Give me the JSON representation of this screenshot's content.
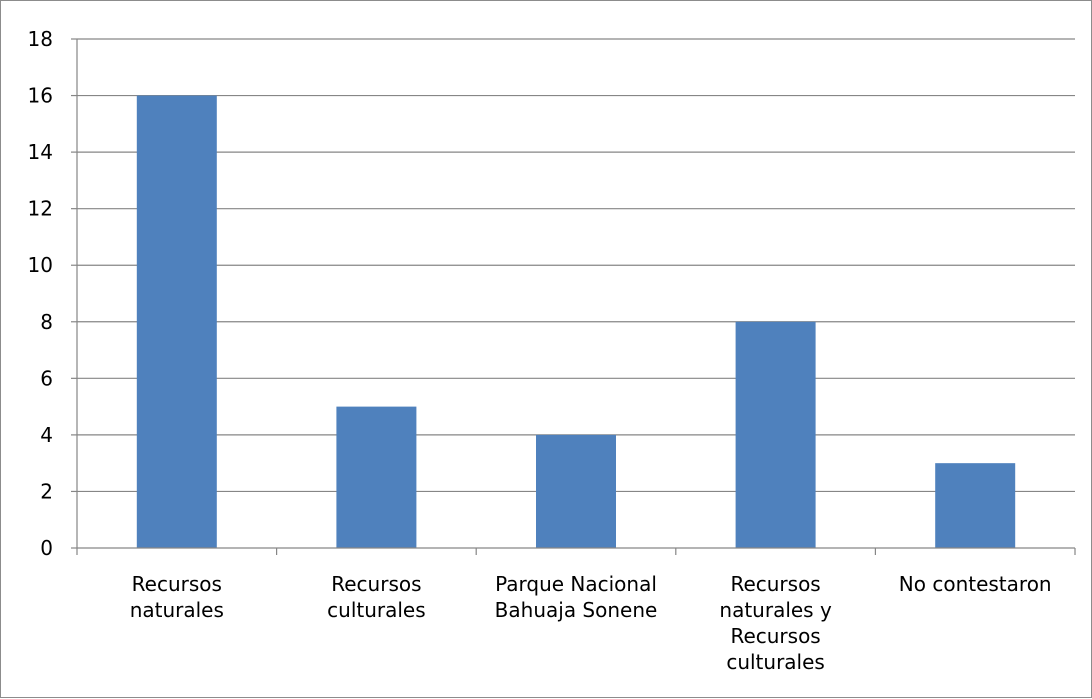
{
  "chart_data": {
    "type": "bar",
    "title": "",
    "xlabel": "",
    "ylabel": "",
    "categories": [
      "Recursos naturales",
      "Recursos culturales",
      "Parque Nacional Bahuaja Sonene",
      "Recursos naturales y Recursos culturales",
      "No contestaron"
    ],
    "category_label_lines": [
      [
        "Recursos",
        "naturales"
      ],
      [
        "Recursos",
        "culturales"
      ],
      [
        "Parque Nacional",
        "Bahuaja Sonene"
      ],
      [
        "Recursos",
        "naturales y",
        "Recursos",
        "culturales"
      ],
      [
        "No contestaron"
      ]
    ],
    "values": [
      16,
      5,
      4,
      8,
      3
    ],
    "ylim": [
      0,
      18
    ],
    "yticks": [
      0,
      2,
      4,
      6,
      8,
      10,
      12,
      14,
      16,
      18
    ],
    "grid": true,
    "legend": "none",
    "bar_color": "#4f81bd",
    "grid_color": "#868686"
  }
}
